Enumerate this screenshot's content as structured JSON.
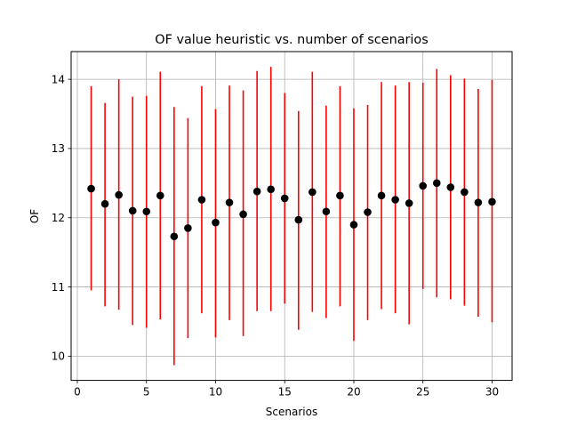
{
  "chart_data": {
    "type": "scatter",
    "title": "OF value heuristic vs. number of scenarios",
    "xlabel": "Scenarios",
    "ylabel": "OF",
    "xlim": [
      -0.45,
      31.45
    ],
    "ylim": [
      9.65,
      14.4
    ],
    "grid": true,
    "x_ticks": [
      0,
      5,
      10,
      15,
      20,
      25,
      30
    ],
    "y_ticks": [
      10,
      11,
      12,
      13,
      14
    ],
    "x_tick_labels": [
      "0",
      "5",
      "10",
      "15",
      "20",
      "25",
      "30"
    ],
    "y_tick_labels": [
      "10",
      "11",
      "12",
      "13",
      "14"
    ],
    "colors": {
      "point": "#000000",
      "errorbar": "#ff0000",
      "grid": "#b0b0b0"
    },
    "x": [
      1,
      2,
      3,
      4,
      5,
      6,
      7,
      8,
      9,
      10,
      11,
      12,
      13,
      14,
      15,
      16,
      17,
      18,
      19,
      20,
      21,
      22,
      23,
      24,
      25,
      26,
      27,
      28,
      29,
      30
    ],
    "values": [
      12.42,
      12.2,
      12.33,
      12.1,
      12.09,
      12.32,
      11.73,
      11.85,
      12.26,
      11.93,
      12.22,
      12.05,
      12.38,
      12.41,
      12.28,
      11.97,
      12.37,
      12.09,
      12.32,
      11.9,
      12.08,
      12.32,
      12.26,
      12.21,
      12.46,
      12.5,
      12.44,
      12.37,
      12.22,
      12.23
    ],
    "lower": [
      10.95,
      10.72,
      10.67,
      10.45,
      10.41,
      10.53,
      9.87,
      10.26,
      10.62,
      10.27,
      10.52,
      10.29,
      10.65,
      10.65,
      10.76,
      10.38,
      10.64,
      10.55,
      10.72,
      10.22,
      10.52,
      10.68,
      10.62,
      10.46,
      10.97,
      10.85,
      10.82,
      10.73,
      10.57,
      10.49
    ],
    "upper": [
      13.9,
      13.66,
      14.0,
      13.75,
      13.76,
      14.11,
      13.6,
      13.44,
      13.9,
      13.57,
      13.91,
      13.84,
      14.12,
      14.18,
      13.8,
      13.54,
      14.11,
      13.62,
      13.9,
      13.58,
      13.63,
      13.96,
      13.91,
      13.96,
      13.95,
      14.15,
      14.06,
      14.01,
      13.86,
      13.99
    ]
  }
}
